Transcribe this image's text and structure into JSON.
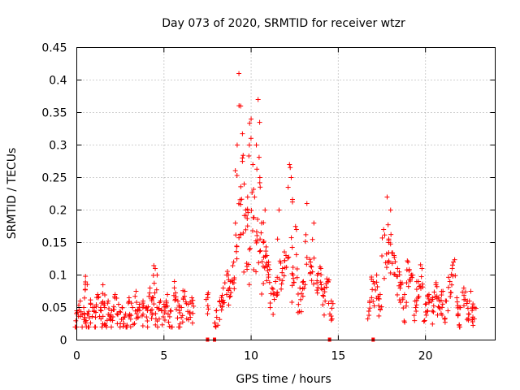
{
  "chart_data": {
    "type": "scatter",
    "title": "Day 073 of 2020, SRMTID for receiver wtzr",
    "xlabel": "GPS time / hours",
    "ylabel": "SRMTID / TECUs",
    "xlim": [
      0,
      24
    ],
    "ylim": [
      0,
      0.45
    ],
    "x_ticks": [
      0,
      5,
      10,
      15,
      20
    ],
    "x_tick_labels": [
      "0",
      "5",
      "10",
      "15",
      "20"
    ],
    "y_ticks": [
      0,
      0.05,
      0.1,
      0.15,
      0.2,
      0.25,
      0.3,
      0.35,
      0.4,
      0.45
    ],
    "y_tick_labels": [
      "0",
      "0.05",
      "0.1",
      "0.15",
      "0.2",
      "0.25",
      "0.3",
      "0.35",
      "0.4",
      "0.45"
    ],
    "grid": true,
    "marker": "+",
    "marker_color": "#ff0000",
    "series": [
      {
        "name": "SRMTID",
        "x": [
          0.0,
          0.2,
          0.4,
          0.5,
          0.6,
          0.8,
          1.0,
          1.2,
          1.4,
          1.5,
          1.6,
          1.8,
          2.0,
          2.2,
          2.4,
          2.6,
          2.8,
          3.0,
          3.2,
          3.4,
          3.6,
          3.8,
          4.0,
          4.2,
          4.4,
          4.5,
          4.6,
          4.8,
          5.0,
          5.2,
          5.4,
          5.6,
          5.8,
          6.0,
          6.2,
          6.4,
          6.6,
          7.5,
          8.0,
          8.2,
          8.4,
          8.6,
          8.8,
          9.0,
          9.1,
          9.2,
          9.3,
          9.4,
          9.5,
          9.6,
          9.7,
          9.8,
          9.9,
          10.0,
          10.1,
          10.2,
          10.3,
          10.4,
          10.5,
          10.6,
          10.7,
          10.8,
          10.9,
          11.0,
          11.2,
          11.4,
          11.6,
          11.8,
          12.0,
          12.2,
          12.3,
          12.4,
          12.6,
          12.8,
          13.0,
          13.2,
          13.4,
          13.6,
          13.8,
          14.0,
          14.2,
          14.4,
          14.6,
          16.8,
          17.0,
          17.2,
          17.4,
          17.6,
          17.8,
          17.9,
          18.0,
          18.2,
          18.4,
          18.6,
          18.8,
          19.0,
          19.2,
          19.4,
          19.6,
          19.8,
          20.0,
          20.2,
          20.4,
          20.6,
          20.8,
          21.0,
          21.2,
          21.4,
          21.6,
          21.8,
          22.0,
          22.2,
          22.4,
          22.6,
          22.8
        ],
        "y": [
          0.045,
          0.06,
          0.05,
          0.098,
          0.04,
          0.055,
          0.05,
          0.07,
          0.045,
          0.085,
          0.05,
          0.06,
          0.045,
          0.07,
          0.055,
          0.05,
          0.04,
          0.065,
          0.05,
          0.075,
          0.055,
          0.06,
          0.05,
          0.08,
          0.065,
          0.11,
          0.05,
          0.06,
          0.055,
          0.07,
          0.045,
          0.09,
          0.06,
          0.05,
          0.075,
          0.055,
          0.065,
          0.07,
          0.045,
          0.06,
          0.08,
          0.1,
          0.09,
          0.12,
          0.18,
          0.3,
          0.41,
          0.36,
          0.28,
          0.24,
          0.2,
          0.22,
          0.3,
          0.34,
          0.27,
          0.22,
          0.3,
          0.37,
          0.25,
          0.18,
          0.15,
          0.2,
          0.13,
          0.12,
          0.08,
          0.09,
          0.2,
          0.11,
          0.13,
          0.27,
          0.25,
          0.1,
          0.17,
          0.08,
          0.09,
          0.21,
          0.12,
          0.18,
          0.1,
          0.11,
          0.08,
          0.09,
          0.06,
          0.06,
          0.09,
          0.1,
          0.07,
          0.17,
          0.22,
          0.15,
          0.2,
          0.13,
          0.11,
          0.085,
          0.07,
          0.12,
          0.1,
          0.06,
          0.09,
          0.11,
          0.055,
          0.07,
          0.065,
          0.085,
          0.06,
          0.075,
          0.06,
          0.09,
          0.12,
          0.065,
          0.05,
          0.08,
          0.06,
          0.075,
          0.05
        ]
      }
    ],
    "baseline_marks_x": [
      7.5,
      7.9,
      14.5,
      17.0
    ]
  }
}
